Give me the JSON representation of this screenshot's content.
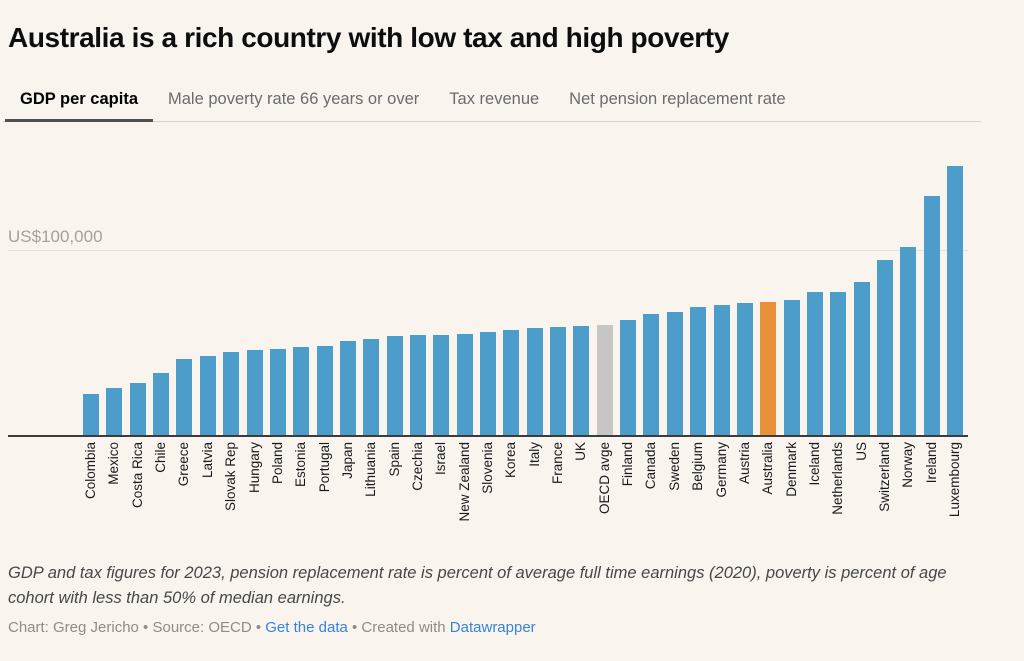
{
  "title": "Australia is a rich country with low tax and high poverty",
  "tabs": [
    {
      "label": "GDP per capita",
      "active": true
    },
    {
      "label": "Male poverty rate 66 years or over",
      "active": false
    },
    {
      "label": "Tax revenue",
      "active": false
    },
    {
      "label": "Net pension replacement rate",
      "active": false
    }
  ],
  "chart_data": {
    "type": "bar",
    "title": "Australia is a rich country with low tax and high poverty",
    "xlabel": "",
    "ylabel": "GDP per capita (US$)",
    "gridline_label": "US$100,000",
    "gridline_value": 100000,
    "ylim": [
      0,
      145000
    ],
    "grid": "single-horizontal-line",
    "legend": "none",
    "categories": [
      "Colombia",
      "Mexico",
      "Costa Rica",
      "Chile",
      "Greece",
      "Latvia",
      "Slovak Rep",
      "Hungary",
      "Poland",
      "Estonia",
      "Portugal",
      "Japan",
      "Lithuania",
      "Spain",
      "Czechia",
      "Israel",
      "New Zealand",
      "Slovenia",
      "Korea",
      "Italy",
      "France",
      "UK",
      "OECD avge",
      "Finland",
      "Canada",
      "Sweden",
      "Belgium",
      "Germany",
      "Austria",
      "Australia",
      "Denmark",
      "Iceland",
      "Netherlands",
      "US",
      "Switzerland",
      "Norway",
      "Ireland",
      "Luxembourg"
    ],
    "values": [
      22000,
      25400,
      28100,
      33300,
      40700,
      42500,
      44500,
      45900,
      46100,
      47500,
      48100,
      50400,
      51900,
      53400,
      53900,
      54000,
      54400,
      55300,
      56500,
      57800,
      58000,
      58800,
      59000,
      61600,
      65200,
      66300,
      68800,
      69700,
      71000,
      71500,
      72700,
      76800,
      76900,
      82500,
      93900,
      100900,
      128600,
      144700
    ],
    "colors": {
      "default": "#4c9dc9"
    },
    "highlights": [
      {
        "category": "OECD avge",
        "color": "#c8c6c4"
      },
      {
        "category": "Australia",
        "color": "#e89138"
      }
    ]
  },
  "notes": "GDP and tax figures for 2023, pension replacement rate is percent of average full time earnings (2020), poverty is percent of age cohort with less than 50% of median earnings.",
  "credit": {
    "part1": "Chart: Greg Jericho • Source: OECD • ",
    "link1": "Get the data",
    "part2": " • Created with ",
    "link2": "Datawrapper"
  }
}
